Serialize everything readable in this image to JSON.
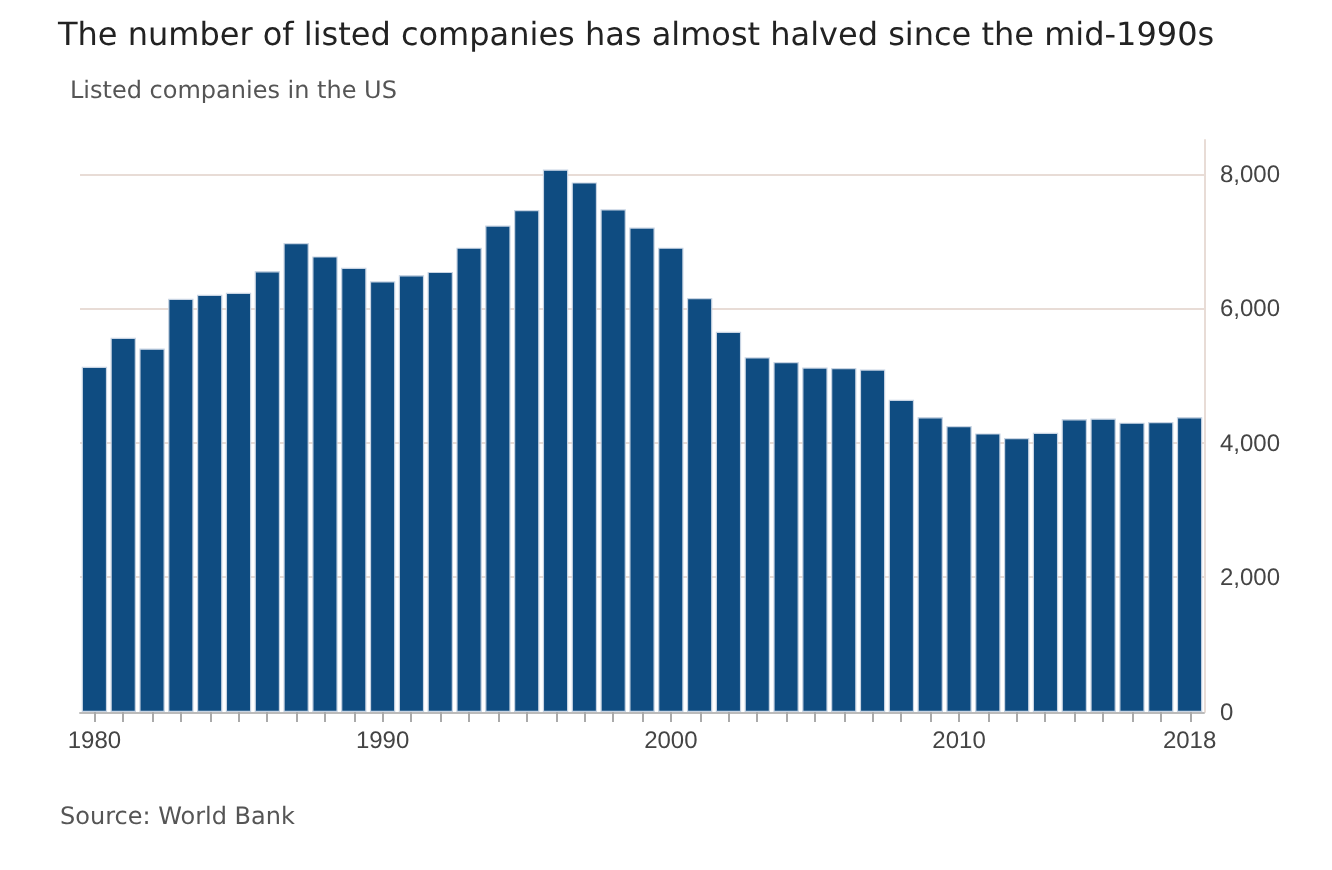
{
  "chart_data": {
    "type": "bar",
    "title": "The number of listed companies has almost halved since the mid-1990s",
    "subtitle": "Listed companies in the US",
    "categories": [
      "1980",
      null,
      null,
      null,
      null,
      null,
      null,
      null,
      null,
      null,
      "1990",
      null,
      null,
      null,
      null,
      null,
      null,
      null,
      null,
      null,
      "2000",
      null,
      null,
      null,
      null,
      null,
      null,
      null,
      null,
      null,
      "2010",
      null,
      null,
      null,
      null,
      null,
      null,
      null,
      "2018"
    ],
    "values": [
      5130,
      5560,
      5400,
      6140,
      6200,
      6230,
      6550,
      6970,
      6770,
      6600,
      6400,
      6490,
      6540,
      6900,
      7230,
      7460,
      8060,
      7870,
      7470,
      7200,
      6900,
      6150,
      5650,
      5270,
      5200,
      5120,
      5110,
      5090,
      4640,
      4380,
      4250,
      4140,
      4070,
      4150,
      4350,
      4360,
      4300,
      4310,
      4380
    ],
    "color": "#0f4c81",
    "ylim": [
      0,
      8500
    ],
    "yticks": [
      0,
      {
        "value": 2000,
        "label": "2,000"
      },
      {
        "value": 4000,
        "label": "4,000"
      },
      {
        "value": 6000,
        "label": "6,000"
      },
      {
        "value": 8000,
        "label": "8,000"
      }
    ],
    "grid": "y",
    "annotations": [
      "Source: World Bank"
    ]
  }
}
